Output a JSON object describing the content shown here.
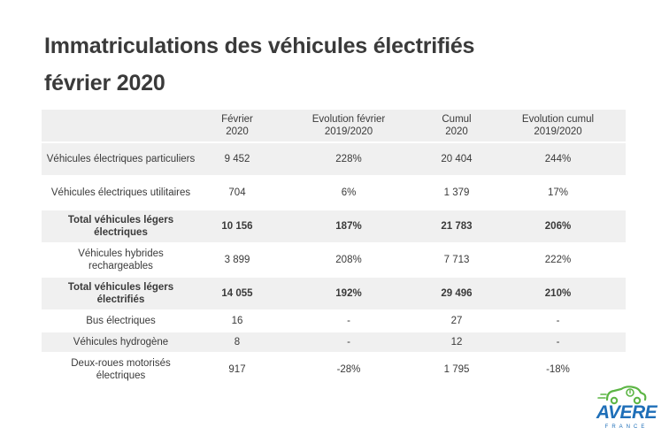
{
  "title": {
    "line1": "Immatriculations des véhicules électrifiés",
    "line2": "février 2020"
  },
  "table": {
    "headers": [
      "",
      "Février\n2020",
      "Evolution février\n2019/2020",
      "Cumul\n2020",
      "Evolution cumul\n2019/2020"
    ],
    "rows": [
      {
        "label": "Véhicules électriques particuliers",
        "values": [
          "9 452",
          "228%",
          "20 404",
          "244%"
        ]
      },
      {
        "label": "Véhicules électriques utilitaires",
        "values": [
          "704",
          "6%",
          "1 379",
          "17%"
        ]
      },
      {
        "label": "Total véhicules légers électriques",
        "values": [
          "10 156",
          "187%",
          "21 783",
          "206%"
        ]
      },
      {
        "label": "Véhicules hybrides rechargeables",
        "values": [
          "3 899",
          "208%",
          "7 713",
          "222%"
        ]
      },
      {
        "label": "Total véhicules légers électrifiés",
        "values": [
          "14 055",
          "192%",
          "29 496",
          "210%"
        ]
      },
      {
        "label": "Bus électriques",
        "values": [
          "16",
          "-",
          "27",
          "-"
        ]
      },
      {
        "label": "Véhicules hydrogène",
        "values": [
          "8",
          "-",
          "12",
          "-"
        ]
      },
      {
        "label": "Deux-roues motorisés électriques",
        "values": [
          "917",
          "-28%",
          "1 795",
          "-18%"
        ]
      }
    ]
  },
  "logo": {
    "name": "AVERE",
    "subtitle": "FRANCE",
    "icon": "electric-car-icon",
    "colors": {
      "green": "#5cb544",
      "blue": "#1f6fb8"
    }
  }
}
